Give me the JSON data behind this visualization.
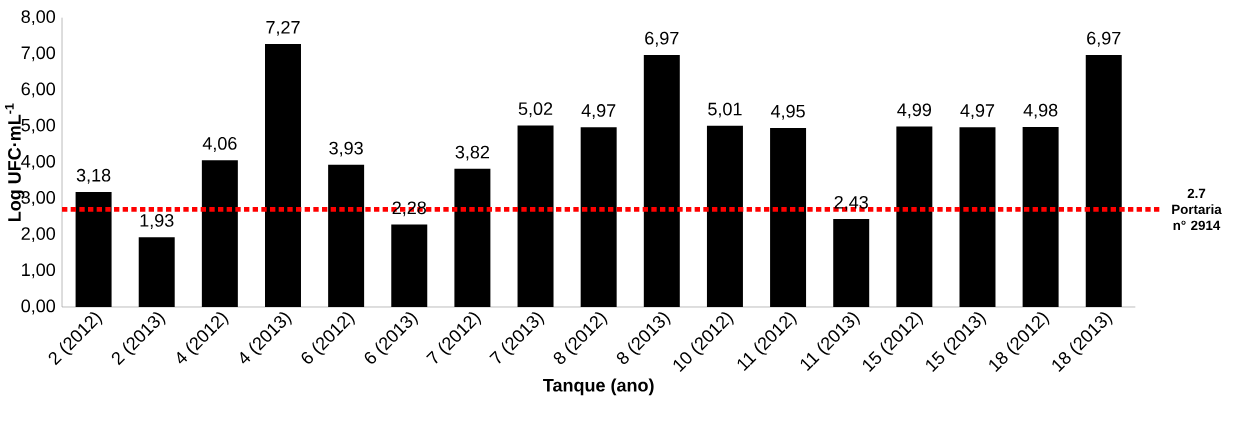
{
  "chart_data": {
    "type": "bar",
    "xlabel": "Tanque (ano)",
    "ylabel": "Log UFC·mL$^{-1}$",
    "categories": [
      "2 (2012)",
      "2 (2013)",
      "4 (2012)",
      "4 (2013)",
      "6 (2012)",
      "6 (2013)",
      "7 (2012)",
      "7 (2013)",
      "8 (2012)",
      "8 (2013)",
      "10 (2012)",
      "11 (2012)",
      "11 (2013)",
      "15 (2012)",
      "15 (2013)",
      "18 (2012)",
      "18 (2013)"
    ],
    "values": [
      3.18,
      1.93,
      4.06,
      7.27,
      3.93,
      2.28,
      3.82,
      5.02,
      4.97,
      6.97,
      5.01,
      4.95,
      2.43,
      4.99,
      4.97,
      4.98,
      6.97
    ],
    "value_labels": [
      "3,18",
      "1,93",
      "4,06",
      "7,27",
      "3,93",
      "2,28",
      "3,82",
      "5,02",
      "4,97",
      "6,97",
      "5,01",
      "4,95",
      "2,43",
      "4,99",
      "4,97",
      "4,98",
      "6,97"
    ],
    "color": "#000000",
    "ylim": [
      0,
      8
    ],
    "yticks": [
      {
        "value": 0,
        "label": "0,00"
      },
      {
        "value": 1,
        "label": "1,00"
      },
      {
        "value": 2,
        "label": "2,00"
      },
      {
        "value": 3,
        "label": "3,00"
      },
      {
        "value": 4,
        "label": "4,00"
      },
      {
        "value": 5,
        "label": "5,00"
      },
      {
        "value": 6,
        "label": "6,00"
      },
      {
        "value": 7,
        "label": "7,00"
      },
      {
        "value": 8,
        "label": "8,00"
      }
    ],
    "ref_lines": [
      {
        "axis": "y",
        "value": 2.7,
        "label": "2.7 Portaria n° 2914",
        "color": "#ff0000",
        "line_style": "dotted"
      }
    ],
    "grid": false
  }
}
